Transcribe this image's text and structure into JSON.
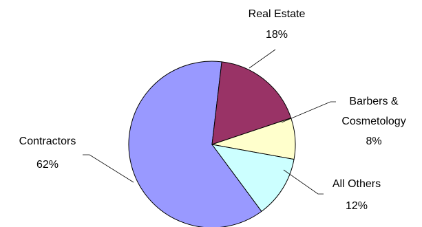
{
  "chart_data": {
    "type": "pie",
    "title": "",
    "legend": "none",
    "series": [
      {
        "values": [
          62,
          18,
          8,
          12
        ]
      }
    ],
    "slices": [
      {
        "label": "Contractors",
        "value": 62,
        "pct_label": "62%",
        "color": "#9999ff"
      },
      {
        "label": "Real Estate",
        "value": 18,
        "pct_label": "18%",
        "color": "#993366"
      },
      {
        "label_lines": [
          "Barbers &",
          "Cosmetology"
        ],
        "label": "Barbers & Cosmetology",
        "value": 8,
        "pct_label": "8%",
        "color": "#ffffcc"
      },
      {
        "label": "All Others",
        "value": 12,
        "pct_label": "12%",
        "color": "#ccffff"
      }
    ]
  }
}
